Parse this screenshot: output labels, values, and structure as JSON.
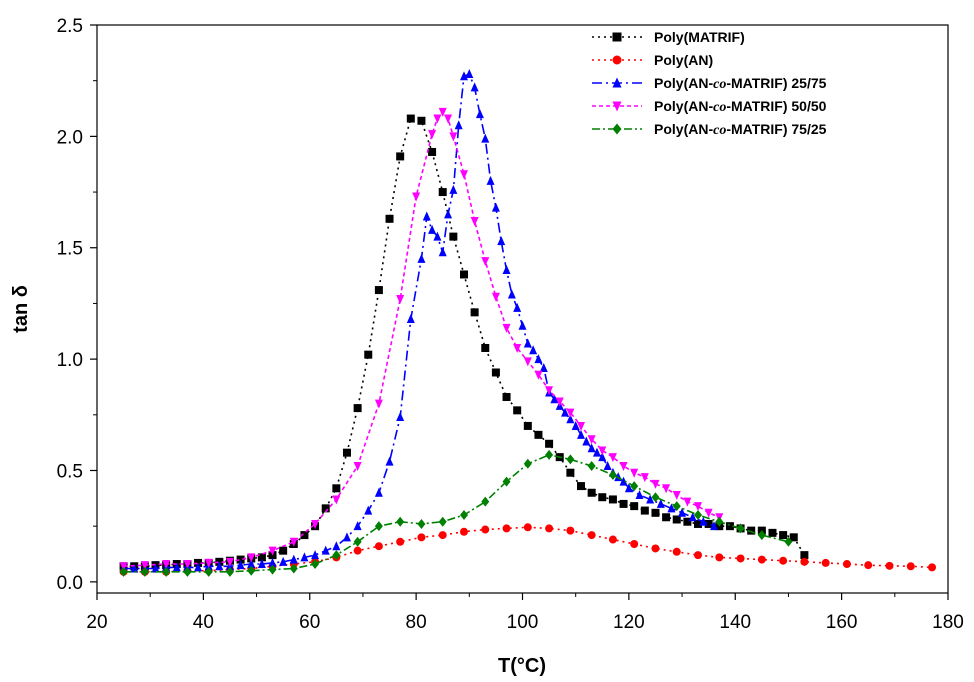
{
  "chart_data": {
    "type": "line",
    "xlabel": "T(°C)",
    "ylabel": "tan δ",
    "xlim": [
      20,
      180
    ],
    "ylim": [
      -0.05,
      2.5
    ],
    "xticks": [
      20,
      40,
      60,
      80,
      100,
      120,
      140,
      160,
      180
    ],
    "xtick_labels": [
      "20",
      "40",
      "60",
      "80",
      "100",
      "120",
      "140",
      "160",
      "180"
    ],
    "yticks": [
      0.0,
      0.5,
      1.0,
      1.5,
      2.0,
      2.5
    ],
    "ytick_labels": [
      "0.0",
      "0.5",
      "1.0",
      "1.5",
      "2.0",
      "2.5"
    ],
    "grid": false,
    "legend_position": "top-right",
    "series": [
      {
        "name": "Poly(MATRIF)",
        "legend_parts": [
          "Poly(MATRIF)"
        ],
        "color": "#000000",
        "marker": "square",
        "dash": "2,4",
        "x": [
          25,
          27,
          29,
          31,
          33,
          35,
          37,
          39,
          41,
          43,
          45,
          47,
          49,
          51,
          53,
          55,
          57,
          59,
          61,
          63,
          65,
          67,
          69,
          71,
          73,
          75,
          77,
          79,
          81,
          83,
          85,
          87,
          89,
          91,
          93,
          95,
          97,
          99,
          101,
          103,
          105,
          107,
          109,
          111,
          113,
          115,
          117,
          119,
          121,
          123,
          125,
          127,
          129,
          131,
          133,
          135,
          137,
          139,
          141,
          143,
          145,
          147,
          149,
          151,
          153
        ],
        "y": [
          0.07,
          0.07,
          0.07,
          0.075,
          0.075,
          0.08,
          0.08,
          0.085,
          0.085,
          0.09,
          0.095,
          0.1,
          0.105,
          0.11,
          0.12,
          0.14,
          0.17,
          0.21,
          0.25,
          0.33,
          0.42,
          0.58,
          0.78,
          1.02,
          1.31,
          1.63,
          1.91,
          2.08,
          2.07,
          1.93,
          1.75,
          1.55,
          1.38,
          1.21,
          1.05,
          0.94,
          0.83,
          0.77,
          0.7,
          0.66,
          0.62,
          0.56,
          0.49,
          0.43,
          0.4,
          0.38,
          0.37,
          0.35,
          0.34,
          0.32,
          0.31,
          0.29,
          0.28,
          0.27,
          0.26,
          0.26,
          0.25,
          0.25,
          0.24,
          0.23,
          0.23,
          0.22,
          0.21,
          0.2,
          0.12
        ]
      },
      {
        "name": "Poly(AN)",
        "legend_parts": [
          "Poly(AN)"
        ],
        "color": "#ff0000",
        "marker": "circle",
        "dash": "2,4",
        "x": [
          25,
          29,
          33,
          37,
          41,
          45,
          49,
          53,
          57,
          61,
          65,
          69,
          73,
          77,
          81,
          85,
          89,
          93,
          97,
          101,
          105,
          109,
          113,
          117,
          121,
          125,
          129,
          133,
          137,
          141,
          145,
          149,
          153,
          157,
          161,
          165,
          169,
          173,
          177
        ],
        "y": [
          0.045,
          0.045,
          0.045,
          0.05,
          0.05,
          0.055,
          0.06,
          0.07,
          0.08,
          0.09,
          0.11,
          0.14,
          0.16,
          0.18,
          0.2,
          0.21,
          0.225,
          0.235,
          0.24,
          0.245,
          0.24,
          0.23,
          0.21,
          0.19,
          0.17,
          0.15,
          0.135,
          0.12,
          0.11,
          0.105,
          0.1,
          0.095,
          0.09,
          0.085,
          0.08,
          0.075,
          0.072,
          0.07,
          0.065
        ]
      },
      {
        "name": "Poly(AN-co-MATRIF) 25/75",
        "legend_parts": [
          "Poly(AN-",
          "co",
          "-MATRIF) 25/75"
        ],
        "color": "#0000ff",
        "marker": "triangle-up",
        "dash": "10,4,2,4",
        "x": [
          25,
          27,
          29,
          31,
          33,
          35,
          37,
          39,
          41,
          43,
          45,
          47,
          49,
          51,
          53,
          55,
          57,
          59,
          61,
          63,
          65,
          67,
          69,
          71,
          73,
          75,
          77,
          79,
          81,
          82,
          83,
          84,
          85,
          86,
          87,
          88,
          89,
          90,
          91,
          92,
          93,
          94,
          95,
          96,
          97,
          98,
          99,
          100,
          101,
          102,
          103,
          104,
          105,
          106,
          107,
          108,
          109,
          110,
          111,
          112,
          113,
          114,
          115,
          116,
          117,
          118,
          119,
          120,
          122,
          124,
          126,
          128,
          130,
          132,
          134,
          136
        ],
        "y": [
          0.06,
          0.06,
          0.06,
          0.06,
          0.065,
          0.065,
          0.065,
          0.065,
          0.07,
          0.07,
          0.07,
          0.075,
          0.08,
          0.08,
          0.085,
          0.09,
          0.1,
          0.11,
          0.12,
          0.14,
          0.16,
          0.2,
          0.25,
          0.32,
          0.4,
          0.54,
          0.74,
          1.18,
          1.45,
          1.64,
          1.58,
          1.55,
          1.48,
          1.65,
          1.76,
          2.05,
          2.27,
          2.28,
          2.22,
          2.1,
          1.99,
          1.8,
          1.68,
          1.53,
          1.4,
          1.29,
          1.23,
          1.15,
          1.07,
          1.04,
          1.0,
          0.96,
          0.85,
          0.82,
          0.79,
          0.76,
          0.73,
          0.7,
          0.66,
          0.63,
          0.6,
          0.58,
          0.56,
          0.52,
          0.49,
          0.47,
          0.45,
          0.42,
          0.39,
          0.37,
          0.35,
          0.33,
          0.31,
          0.29,
          0.27,
          0.25
        ]
      },
      {
        "name": "Poly(AN-co-MATRIF) 50/50",
        "legend_parts": [
          "Poly(AN-",
          "co",
          "-MATRIF) 50/50"
        ],
        "color": "#ff00ff",
        "marker": "triangle-down",
        "dash": "4,3",
        "x": [
          25,
          29,
          33,
          37,
          41,
          45,
          49,
          53,
          57,
          61,
          65,
          69,
          73,
          77,
          80,
          83,
          84,
          85,
          86,
          87,
          89,
          91,
          93,
          95,
          97,
          99,
          101,
          103,
          105,
          107,
          109,
          111,
          113,
          115,
          117,
          119,
          121,
          123,
          125,
          127,
          129,
          131,
          133,
          135,
          137
        ],
        "y": [
          0.07,
          0.075,
          0.08,
          0.08,
          0.085,
          0.09,
          0.11,
          0.14,
          0.18,
          0.26,
          0.37,
          0.52,
          0.8,
          1.27,
          1.73,
          2.01,
          2.08,
          2.11,
          2.08,
          2.0,
          1.83,
          1.62,
          1.44,
          1.28,
          1.14,
          1.05,
          0.99,
          0.93,
          0.86,
          0.81,
          0.76,
          0.7,
          0.64,
          0.59,
          0.56,
          0.52,
          0.49,
          0.47,
          0.44,
          0.42,
          0.39,
          0.36,
          0.34,
          0.31,
          0.29
        ]
      },
      {
        "name": "Poly(AN-co-MATRIF) 75/25",
        "legend_parts": [
          "Poly(AN-",
          "co",
          "-MATRIF) 75/25"
        ],
        "color": "#008000",
        "marker": "diamond",
        "dash": "8,3,2,3",
        "x": [
          25,
          29,
          33,
          37,
          41,
          45,
          49,
          53,
          57,
          61,
          65,
          69,
          73,
          77,
          81,
          85,
          89,
          93,
          97,
          101,
          105,
          109,
          113,
          117,
          121,
          125,
          129,
          133,
          137,
          141,
          145,
          150
        ],
        "y": [
          0.045,
          0.045,
          0.045,
          0.045,
          0.045,
          0.045,
          0.05,
          0.055,
          0.06,
          0.08,
          0.12,
          0.18,
          0.25,
          0.27,
          0.26,
          0.27,
          0.3,
          0.36,
          0.45,
          0.53,
          0.57,
          0.55,
          0.52,
          0.48,
          0.43,
          0.38,
          0.34,
          0.3,
          0.27,
          0.24,
          0.21,
          0.18
        ]
      }
    ]
  }
}
